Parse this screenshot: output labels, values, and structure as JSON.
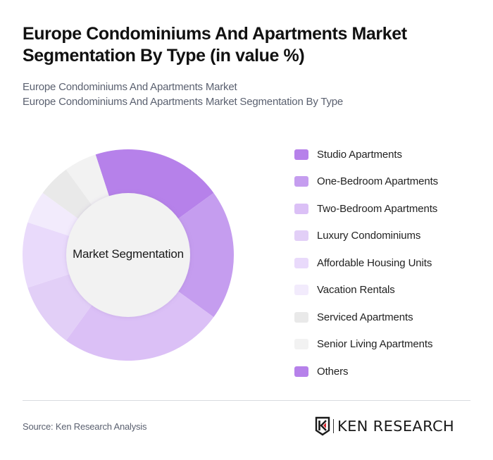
{
  "header": {
    "title": "Europe Condominiums And Apartments Market Segmentation By Type (in value %)",
    "subtitle_line1": "Europe Condominiums And Apartments Market",
    "subtitle_line2": "Europe Condominiums And Apartments Market Segmentation By Type"
  },
  "chart": {
    "center_label": "Market Segmentation"
  },
  "legend": {
    "items": [
      {
        "label": "Studio Apartments",
        "color": "#b681ea"
      },
      {
        "label": "One-Bedroom Apartments",
        "color": "#c59def"
      },
      {
        "label": "Two-Bedroom Apartments",
        "color": "#dbc0f6"
      },
      {
        "label": "Luxury Condominiums",
        "color": "#e2cff7"
      },
      {
        "label": "Affordable Housing Units",
        "color": "#e9dafb"
      },
      {
        "label": "Vacation Rentals",
        "color": "#f2ebfc"
      },
      {
        "label": "Serviced Apartments",
        "color": "#e9e9e9"
      },
      {
        "label": "Senior Living Apartments",
        "color": "#f2f2f2"
      },
      {
        "label": "Others",
        "color": "#b681ea"
      }
    ]
  },
  "footer": {
    "source": "Source: Ken Research Analysis",
    "logo_text": "KEN RESEARCH"
  },
  "chart_data": {
    "type": "pie",
    "subtype": "donut",
    "title": "Europe Condominiums And Apartments Market Segmentation By Type (in value %)",
    "subtitle": "Europe Condominiums And Apartments Market / Europe Condominiums And Apartments Market Segmentation By Type",
    "center_label": "Market Segmentation",
    "categories": [
      "Studio Apartments",
      "One-Bedroom Apartments",
      "Two-Bedroom Apartments",
      "Luxury Condominiums",
      "Affordable Housing Units",
      "Vacation Rentals",
      "Serviced Apartments",
      "Senior Living Apartments",
      "Others"
    ],
    "values": [
      20,
      20,
      25,
      10,
      10,
      5,
      5,
      5,
      0
    ],
    "colors": [
      "#b681ea",
      "#c59def",
      "#dbc0f6",
      "#e2cff7",
      "#e9dafb",
      "#f2ebfc",
      "#e9e9e9",
      "#f2f2f2",
      "#b681ea"
    ],
    "start_angle_deg": 342,
    "unit": "%",
    "legend_position": "right",
    "source": "Source: Ken Research Analysis"
  }
}
